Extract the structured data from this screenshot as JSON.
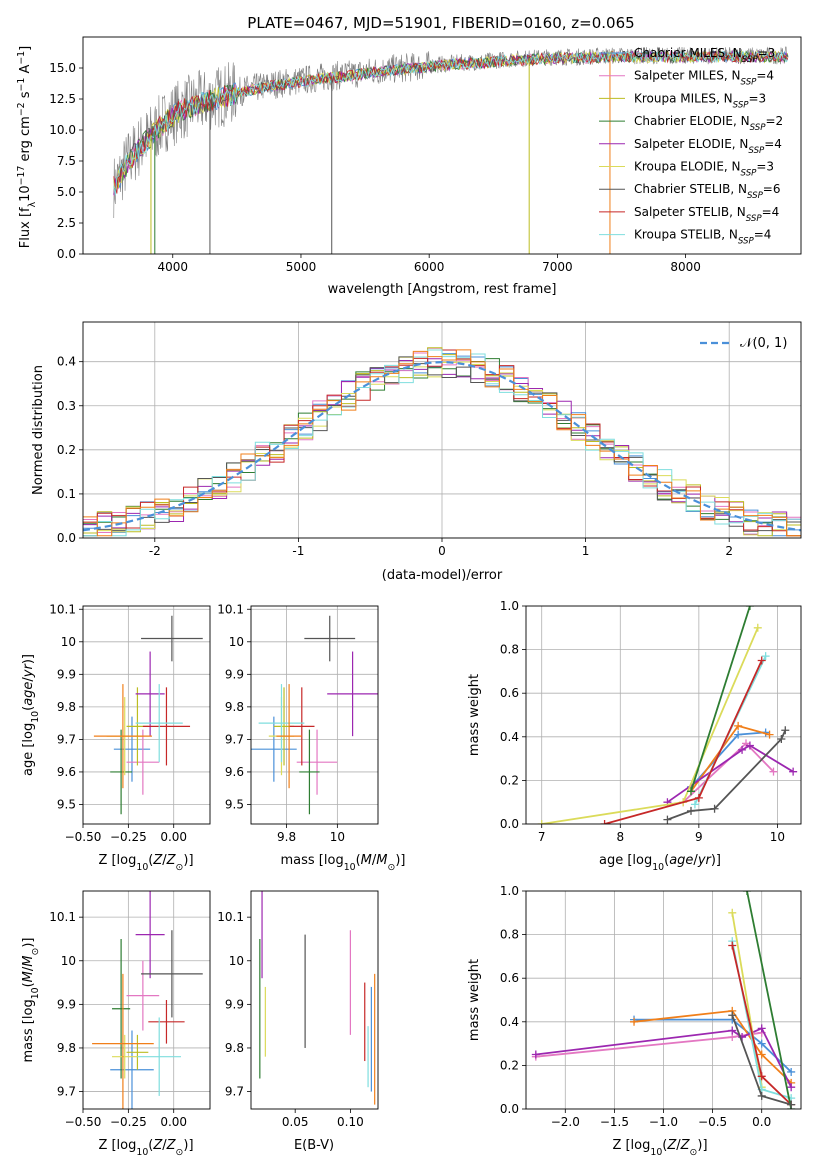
{
  "figure": {
    "title": "PLATE=0467, MJD=51901, FIBERID=0160, z=0.065"
  },
  "legend_colors": [
    "#4a90d9",
    "#e377c2",
    "#bcbd22",
    "#2e7d32",
    "#9c27b0",
    "#dbdb5a",
    "#555555",
    "#c62828",
    "#7fdede"
  ],
  "palette": {
    "chabrier_miles": "#4a90d9",
    "salpeter_miles": "#e377c2",
    "kroupa_miles": "#bcbd22",
    "chabrier_elodie": "#2e7d32",
    "salpeter_elodie": "#9c27b0",
    "kroupa_elodie": "#dbdb5a",
    "chabrier_stelib": "#555555",
    "salpeter_stelib": "#c62828",
    "kroupa_stelib": "#7fdede",
    "orange": "#f07f1a",
    "gaussian": "#4a90d9",
    "grid": "#b0b0b0",
    "data": "#7f7f7f"
  },
  "chart_data": [
    {
      "id": "spectrum",
      "type": "line",
      "title": "PLATE=0467, MJD=51901, FIBERID=0160, z=0.065",
      "xlabel": "wavelength [Angstrom, rest frame]",
      "ylabel": "Flux [f_λ 10^-17 erg cm^-2 s^-1 A^-1]",
      "xlim": [
        3300,
        8900
      ],
      "ylim": [
        0,
        17.5
      ],
      "xticks": [
        4000,
        5000,
        6000,
        7000,
        8000
      ],
      "yticks": [
        0.0,
        2.5,
        5.0,
        7.5,
        10.0,
        12.5,
        15.0
      ],
      "ytick_labels": [
        "0.0",
        "2.5",
        "5.0",
        "7.5",
        "10.0",
        "12.5",
        "15.0"
      ],
      "grid": false,
      "legend_position": "upper-right",
      "model_continuum": {
        "x": [
          3550,
          3650,
          3750,
          3850,
          3950,
          4050,
          4200,
          4400,
          4600,
          4800,
          5000,
          5200,
          5400,
          5600,
          5800,
          6000,
          6200,
          6400,
          6600,
          6800,
          7000,
          7200,
          7400
        ],
        "y": [
          5.5,
          7.5,
          8.8,
          9.8,
          10.8,
          11.6,
          12.2,
          12.8,
          13.3,
          13.7,
          14.0,
          14.3,
          14.5,
          14.8,
          15.0,
          15.2,
          15.4,
          15.5,
          15.7,
          15.8,
          15.9,
          15.9,
          16.0
        ]
      },
      "data_extent": [
        3540,
        8800
      ],
      "series": [
        {
          "name": "Chabrier MILES, N_SSP=3",
          "label_pre": "Chabrier MILES, N",
          "label_post": "=3",
          "color": "#4a90d9"
        },
        {
          "name": "Salpeter MILES, N_SSP=4",
          "label_pre": "Salpeter MILES, N",
          "label_post": "=4",
          "color": "#e377c2"
        },
        {
          "name": "Kroupa MILES, N_SSP=3",
          "label_pre": "Kroupa MILES, N",
          "label_post": "=3",
          "color": "#bcbd22"
        },
        {
          "name": "Chabrier ELODIE, N_SSP=2",
          "label_pre": "Chabrier ELODIE, N",
          "label_post": "=2",
          "color": "#2e7d32"
        },
        {
          "name": "Salpeter ELODIE, N_SSP=4",
          "label_pre": "Salpeter ELODIE, N",
          "label_post": "=4",
          "color": "#9c27b0"
        },
        {
          "name": "Kroupa ELODIE, N_SSP=3",
          "label_pre": "Kroupa ELODIE, N",
          "label_post": "=3",
          "color": "#dbdb5a"
        },
        {
          "name": "Chabrier STELIB, N_SSP=6",
          "label_pre": "Chabrier STELIB, N",
          "label_post": "=6",
          "color": "#555555"
        },
        {
          "name": "Salpeter STELIB, N_SSP=4",
          "label_pre": "Salpeter STELIB, N",
          "label_post": "=4",
          "color": "#c62828"
        },
        {
          "name": "Kroupa STELIB, N_SSP=4",
          "label_pre": "Kroupa STELIB, N",
          "label_post": "=4",
          "color": "#7fdede"
        }
      ],
      "spikes": [
        {
          "x": 3830,
          "color": "#bcbd22",
          "ylow": 0
        },
        {
          "x": 3860,
          "color": "#2e7d32",
          "ylow": 0
        },
        {
          "x": 4290,
          "color": "#555555",
          "ylow": 0
        },
        {
          "x": 5240,
          "color": "#555555",
          "ylow": 0
        },
        {
          "x": 6780,
          "color": "#bcbd22",
          "ylow": 0
        },
        {
          "x": 7410,
          "color": "#f07f1a",
          "ylow": 0
        }
      ]
    },
    {
      "id": "residuals",
      "type": "histogram",
      "xlabel": "(data-model)/error",
      "ylabel": "Normed distribution",
      "xlim": [
        -2.5,
        2.5
      ],
      "ylim": [
        0,
        0.49
      ],
      "xticks": [
        -2,
        -1,
        0,
        1,
        2
      ],
      "yticks": [
        0.0,
        0.1,
        0.2,
        0.3,
        0.4
      ],
      "ytick_labels": [
        "0.0",
        "0.1",
        "0.2",
        "0.3",
        "0.4"
      ],
      "grid": true,
      "legend_position": "upper-right",
      "legend_label": "N(0,1)",
      "gaussian": {
        "mean": 0,
        "sigma": 1,
        "style": "dashed"
      },
      "bin_width": 0.1
    },
    {
      "id": "age_vs_Z",
      "type": "scatter",
      "xlabel": "Z [log10(Z/Z⊙)]",
      "ylabel": "age [log10(age/yr)]",
      "xlim": [
        -0.5,
        0.2
      ],
      "ylim": [
        9.44,
        10.11
      ],
      "xticks": [
        -0.5,
        -0.25,
        0.0
      ],
      "xtick_labels": [
        "−0.50",
        "−0.25",
        "0.00"
      ],
      "yticks": [
        9.5,
        9.6,
        9.7,
        9.8,
        9.9,
        10.0,
        10.1
      ],
      "grid": true,
      "points": [
        {
          "color": "#4a90d9",
          "x": -0.23,
          "xerr": 0.1,
          "y": 9.67,
          "yerr": 0.1
        },
        {
          "color": "#e377c2",
          "x": -0.17,
          "xerr": 0.09,
          "y": 9.63,
          "yerr": 0.1
        },
        {
          "color": "#bcbd22",
          "x": -0.2,
          "xerr": 0.06,
          "y": 9.74,
          "yerr": 0.12
        },
        {
          "color": "#2e7d32",
          "x": -0.29,
          "xerr": 0.06,
          "y": 9.6,
          "yerr": 0.13
        },
        {
          "color": "#9c27b0",
          "x": -0.13,
          "xerr": 0.08,
          "y": 9.84,
          "yerr": 0.13
        },
        {
          "color": "#dbdb5a",
          "x": -0.27,
          "xerr": 0.1,
          "y": 9.71,
          "yerr": 0.12
        },
        {
          "color": "#555555",
          "x": -0.01,
          "xerr": 0.17,
          "y": 10.01,
          "yerr": 0.07
        },
        {
          "color": "#c62828",
          "x": -0.04,
          "xerr": 0.13,
          "y": 9.74,
          "yerr": 0.12
        },
        {
          "color": "#7fdede",
          "x": -0.08,
          "xerr": 0.13,
          "y": 9.75,
          "yerr": 0.12
        },
        {
          "color": "#f07f1a",
          "x": -0.28,
          "xerr": 0.16,
          "y": 9.71,
          "yerr": 0.16
        }
      ]
    },
    {
      "id": "age_vs_mass",
      "type": "scatter",
      "xlabel": "mass [log10(M/M⊙)]",
      "ylabel": "",
      "xlim": [
        9.66,
        10.16
      ],
      "ylim": [
        9.44,
        10.11
      ],
      "xticks": [
        9.8,
        10.0
      ],
      "yticks": [
        9.5,
        9.6,
        9.7,
        9.8,
        9.9,
        10.0,
        10.1
      ],
      "grid": true,
      "points": [
        {
          "color": "#4a90d9",
          "x": 9.75,
          "xerr": 0.09,
          "y": 9.67,
          "yerr": 0.1
        },
        {
          "color": "#e377c2",
          "x": 9.92,
          "xerr": 0.08,
          "y": 9.63,
          "yerr": 0.1
        },
        {
          "color": "#bcbd22",
          "x": 9.79,
          "xerr": 0.04,
          "y": 9.74,
          "yerr": 0.12
        },
        {
          "color": "#2e7d32",
          "x": 9.89,
          "xerr": 0.04,
          "y": 9.6,
          "yerr": 0.13
        },
        {
          "color": "#9c27b0",
          "x": 10.06,
          "xerr": 0.1,
          "y": 9.84,
          "yerr": 0.13
        },
        {
          "color": "#dbdb5a",
          "x": 9.78,
          "xerr": 0.05,
          "y": 9.71,
          "yerr": 0.12
        },
        {
          "color": "#555555",
          "x": 9.97,
          "xerr": 0.1,
          "y": 10.01,
          "yerr": 0.07
        },
        {
          "color": "#c62828",
          "x": 9.86,
          "xerr": 0.05,
          "y": 9.74,
          "yerr": 0.12
        },
        {
          "color": "#7fdede",
          "x": 9.78,
          "xerr": 0.09,
          "y": 9.75,
          "yerr": 0.12
        },
        {
          "color": "#f07f1a",
          "x": 9.81,
          "xerr": 0.05,
          "y": 9.71,
          "yerr": 0.16
        }
      ]
    },
    {
      "id": "massweight_vs_age",
      "type": "line",
      "xlabel": "age [log10(age/yr)]",
      "ylabel": "mass weight",
      "xlim": [
        6.8,
        10.3
      ],
      "ylim": [
        0,
        1.0
      ],
      "xticks": [
        7,
        8,
        9,
        10
      ],
      "yticks": [
        0.0,
        0.2,
        0.4,
        0.6,
        0.8,
        1.0
      ],
      "ytick_labels": [
        "0.0",
        "0.2",
        "0.4",
        "0.6",
        "0.8",
        "1.0"
      ],
      "grid": true,
      "marker": "+",
      "series": [
        {
          "color": "#4a90d9",
          "x": [
            8.9,
            9.5,
            9.85
          ],
          "y": [
            0.17,
            0.41,
            0.42
          ]
        },
        {
          "color": "#f07f1a",
          "x": [
            8.9,
            9.5,
            9.9
          ],
          "y": [
            0.15,
            0.45,
            0.41
          ]
        },
        {
          "color": "#e377c2",
          "x": [
            8.8,
            9.6,
            9.95
          ],
          "y": [
            0.1,
            0.37,
            0.24
          ]
        },
        {
          "color": "#9c27b0",
          "x": [
            8.6,
            9.55,
            9.65,
            10.2
          ],
          "y": [
            0.1,
            0.34,
            0.36,
            0.24
          ]
        },
        {
          "color": "#dbdb5a",
          "x": [
            7.0,
            8.8,
            9.75
          ],
          "y": [
            0.0,
            0.1,
            0.9
          ]
        },
        {
          "color": "#7fdede",
          "x": [
            8.95,
            9.85
          ],
          "y": [
            0.09,
            0.77
          ]
        },
        {
          "color": "#c62828",
          "x": [
            7.8,
            9.0,
            9.8
          ],
          "y": [
            0.0,
            0.12,
            0.75
          ]
        },
        {
          "color": "#2e7d32",
          "x": [
            8.9,
            9.65
          ],
          "y": [
            0.15,
            1.0
          ]
        },
        {
          "color": "#555555",
          "x": [
            8.6,
            8.9,
            9.2,
            10.05,
            10.1
          ],
          "y": [
            0.02,
            0.06,
            0.07,
            0.39,
            0.43
          ]
        }
      ]
    },
    {
      "id": "mass_vs_Z",
      "type": "scatter",
      "xlabel": "Z [log10(Z/Z⊙)]",
      "ylabel": "mass [log10(M/M⊙)]",
      "xlim": [
        -0.5,
        0.2
      ],
      "ylim": [
        9.66,
        10.16
      ],
      "xticks": [
        -0.5,
        -0.25,
        0.0
      ],
      "xtick_labels": [
        "−0.50",
        "−0.25",
        "0.00"
      ],
      "yticks": [
        9.7,
        9.8,
        9.9,
        10.0,
        10.1
      ],
      "grid": true,
      "points": [
        {
          "color": "#4a90d9",
          "x": -0.23,
          "xerr": 0.12,
          "y": 9.75,
          "yerr": 0.09
        },
        {
          "color": "#e377c2",
          "x": -0.17,
          "xerr": 0.09,
          "y": 9.92,
          "yerr": 0.08
        },
        {
          "color": "#bcbd22",
          "x": -0.2,
          "xerr": 0.06,
          "y": 9.79,
          "yerr": 0.04
        },
        {
          "color": "#2e7d32",
          "x": -0.29,
          "xerr": 0.05,
          "y": 9.89,
          "yerr": 0.16
        },
        {
          "color": "#9c27b0",
          "x": -0.13,
          "xerr": 0.08,
          "y": 10.06,
          "yerr": 0.1
        },
        {
          "color": "#dbdb5a",
          "x": -0.27,
          "xerr": 0.07,
          "y": 9.78,
          "yerr": 0.05
        },
        {
          "color": "#555555",
          "x": -0.01,
          "xerr": 0.17,
          "y": 9.97,
          "yerr": 0.1
        },
        {
          "color": "#c62828",
          "x": -0.04,
          "xerr": 0.1,
          "y": 9.86,
          "yerr": 0.05
        },
        {
          "color": "#7fdede",
          "x": -0.08,
          "xerr": 0.12,
          "y": 9.78,
          "yerr": 0.09
        },
        {
          "color": "#f07f1a",
          "x": -0.28,
          "xerr": 0.17,
          "y": 9.81,
          "yerr": 0.16
        }
      ]
    },
    {
      "id": "mass_vs_ebv",
      "type": "scatter",
      "xlabel": "E(B-V)",
      "ylabel": "",
      "xlim": [
        0.01,
        0.125
      ],
      "ylim": [
        9.66,
        10.16
      ],
      "xticks": [
        0.05,
        0.1
      ],
      "xtick_labels": [
        "0.05",
        "0.10"
      ],
      "yticks": [
        9.7,
        9.8,
        9.9,
        10.0,
        10.1
      ],
      "grid": false,
      "points": [
        {
          "color": "#9c27b0",
          "x": 0.02,
          "y": 10.06,
          "yerr": 0.1
        },
        {
          "color": "#2e7d32",
          "x": 0.018,
          "y": 9.89,
          "yerr": 0.16
        },
        {
          "color": "#dbdb5a",
          "x": 0.023,
          "y": 9.86,
          "yerr": 0.08
        },
        {
          "color": "#555555",
          "x": 0.059,
          "y": 9.93,
          "yerr": 0.13
        },
        {
          "color": "#e377c2",
          "x": 0.1,
          "y": 9.95,
          "yerr": 0.12
        },
        {
          "color": "#c62828",
          "x": 0.113,
          "y": 9.86,
          "yerr": 0.09
        },
        {
          "color": "#7fdede",
          "x": 0.116,
          "y": 9.78,
          "yerr": 0.07
        },
        {
          "color": "#4a90d9",
          "x": 0.119,
          "y": 9.82,
          "yerr": 0.12
        },
        {
          "color": "#f07f1a",
          "x": 0.122,
          "y": 9.82,
          "yerr": 0.15
        }
      ]
    },
    {
      "id": "massweight_vs_Z",
      "type": "line",
      "xlabel": "Z [log10(Z/Z⊙)]",
      "ylabel": "mass weight",
      "xlim": [
        -2.4,
        0.4
      ],
      "ylim": [
        0,
        1.0
      ],
      "xticks": [
        -2.0,
        -1.5,
        -1.0,
        -0.5,
        0.0
      ],
      "xtick_labels": [
        "−2.0",
        "−1.5",
        "−1.0",
        "−0.5",
        "0.0"
      ],
      "yticks": [
        0.0,
        0.2,
        0.4,
        0.6,
        0.8,
        1.0
      ],
      "ytick_labels": [
        "0.0",
        "0.2",
        "0.4",
        "0.6",
        "0.8",
        "1.0"
      ],
      "grid": true,
      "marker": "+",
      "series": [
        {
          "color": "#4a90d9",
          "x": [
            -1.3,
            -0.3,
            0.0,
            0.3
          ],
          "y": [
            0.41,
            0.41,
            0.3,
            0.17
          ]
        },
        {
          "color": "#f07f1a",
          "x": [
            -1.3,
            -0.3,
            0.0,
            0.3
          ],
          "y": [
            0.4,
            0.45,
            0.25,
            0.12
          ]
        },
        {
          "color": "#e377c2",
          "x": [
            -2.3,
            -0.3,
            0.0
          ],
          "y": [
            0.24,
            0.33,
            0.35
          ]
        },
        {
          "color": "#9c27b0",
          "x": [
            -2.3,
            -0.3,
            -0.2,
            0.0,
            0.3
          ],
          "y": [
            0.25,
            0.36,
            0.33,
            0.37,
            0.1
          ]
        },
        {
          "color": "#dbdb5a",
          "x": [
            -0.3,
            0.0
          ],
          "y": [
            0.9,
            0.1
          ]
        },
        {
          "color": "#7fdede",
          "x": [
            -0.3,
            0.0,
            0.3
          ],
          "y": [
            0.77,
            0.09,
            0.05
          ]
        },
        {
          "color": "#c62828",
          "x": [
            -0.3,
            0.0,
            0.3
          ],
          "y": [
            0.75,
            0.15,
            0.02
          ]
        },
        {
          "color": "#2e7d32",
          "x": [
            -0.15,
            0.3
          ],
          "y": [
            1.0,
            0.0
          ]
        },
        {
          "color": "#555555",
          "x": [
            -0.3,
            0.0,
            0.3
          ],
          "y": [
            0.43,
            0.06,
            0.02
          ]
        }
      ]
    }
  ]
}
